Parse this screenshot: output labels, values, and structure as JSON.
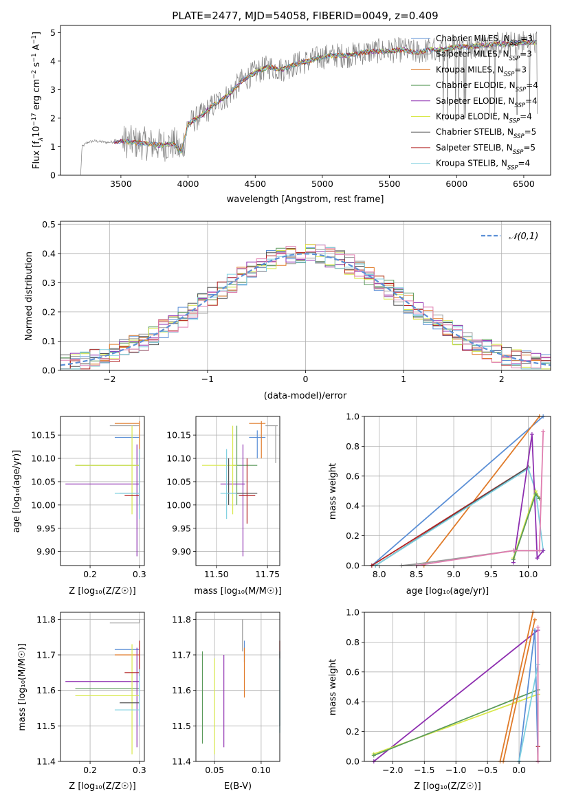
{
  "title": "PLATE=2477, MJD=54058, FIBERID=0049, z=0.409",
  "colors": {
    "Chabrier MILES": "#5b8fd6",
    "Salpeter MILES": "#9b9b9b",
    "Kroupa MILES": "#e07b2a",
    "Chabrier ELODIE": "#5a9a5a",
    "Salpeter ELODIE": "#8e2fb0",
    "Kroupa ELODIE": "#d8e84a",
    "Chabrier STELIB": "#555555",
    "Salpeter STELIB": "#b22222",
    "Kroupa STELIB": "#7fd0e0",
    "data": "#7f7f7f",
    "normal": "#5b8fd6",
    "pink": "#e07fb0"
  },
  "chart_data": [
    {
      "type": "line",
      "id": "spectrum",
      "xlabel": "wavelength [Angstrom, rest frame]",
      "ylabel": "Flux [f_λ 10^-17 erg cm^-2 s^-1 A^-1]",
      "xlim": [
        3050,
        6700
      ],
      "ylim": [
        0,
        5.25
      ],
      "xticks": [
        3500,
        4000,
        4500,
        5000,
        5500,
        6000,
        6500
      ],
      "yticks": [
        0,
        1,
        2,
        3,
        4,
        5
      ],
      "legend_position": "right",
      "legend": [
        {
          "label": "Chabrier MILES, N",
          "sub": "SSP",
          "tail": "=3"
        },
        {
          "label": "Salpeter MILES, N",
          "sub": "SSP",
          "tail": "=3"
        },
        {
          "label": "Kroupa MILES, N",
          "sub": "SSP",
          "tail": "=3"
        },
        {
          "label": "Chabrier ELODIE, N",
          "sub": "SSP",
          "tail": "=4"
        },
        {
          "label": "Salpeter ELODIE, N",
          "sub": "SSP",
          "tail": "=4"
        },
        {
          "label": "Kroupa ELODIE, N",
          "sub": "SSP",
          "tail": "=4"
        },
        {
          "label": "Chabrier STELIB, N",
          "sub": "SSP",
          "tail": "=5"
        },
        {
          "label": "Salpeter STELIB, N",
          "sub": "SSP",
          "tail": "=5"
        },
        {
          "label": "Kroupa STELIB, N",
          "sub": "SSP",
          "tail": "=4"
        }
      ],
      "continuum": [
        [
          3200,
          0
        ],
        [
          3210,
          1.0
        ],
        [
          3250,
          1.15
        ],
        [
          3300,
          1.2
        ],
        [
          3400,
          1.15
        ],
        [
          3500,
          1.2
        ],
        [
          3600,
          1.15
        ],
        [
          3700,
          1.1
        ],
        [
          3800,
          1.05
        ],
        [
          3900,
          1.1
        ],
        [
          3950,
          0.8
        ],
        [
          4000,
          1.8
        ],
        [
          4100,
          2.1
        ],
        [
          4200,
          2.5
        ],
        [
          4300,
          2.8
        ],
        [
          4400,
          3.3
        ],
        [
          4500,
          3.6
        ],
        [
          4600,
          3.8
        ],
        [
          4700,
          3.7
        ],
        [
          4800,
          3.9
        ],
        [
          4900,
          4.0
        ],
        [
          5000,
          4.15
        ],
        [
          5100,
          4.2
        ],
        [
          5200,
          4.2
        ],
        [
          5300,
          4.3
        ],
        [
          5400,
          4.35
        ],
        [
          5500,
          4.35
        ],
        [
          5600,
          4.4
        ],
        [
          5700,
          4.3
        ],
        [
          5800,
          4.4
        ],
        [
          5900,
          4.4
        ],
        [
          6000,
          4.5
        ],
        [
          6100,
          4.5
        ],
        [
          6200,
          4.55
        ],
        [
          6300,
          4.6
        ],
        [
          6400,
          4.6
        ],
        [
          6500,
          4.65
        ],
        [
          6600,
          4.65
        ]
      ]
    },
    {
      "type": "bar",
      "id": "residuals",
      "xlabel": "(data-model)/error",
      "ylabel": "Normed distribution",
      "xlim": [
        -2.5,
        2.5
      ],
      "ylim": [
        0,
        0.51
      ],
      "xticks": [
        -2,
        -1,
        0,
        1,
        2
      ],
      "yticks": [
        0.0,
        0.1,
        0.2,
        0.3,
        0.4,
        0.5
      ],
      "legend": [
        "𝒩(0,1)"
      ],
      "legend_position": "top-right",
      "normal": {
        "mean": 0,
        "sigma": 1
      }
    },
    {
      "type": "scatter",
      "id": "age_vs_Z",
      "xlabel": "Z [log₁₀(Z/Z☉)]",
      "ylabel": "age  [log₁₀(age/yr)]",
      "xlim": [
        0.14,
        0.31
      ],
      "ylim": [
        9.87,
        10.19
      ],
      "xticks": [
        0.2,
        0.3
      ],
      "yticks": [
        9.9,
        9.95,
        10.0,
        10.05,
        10.1,
        10.15
      ],
      "points": [
        {
          "series": "Chabrier MILES",
          "x": 0.3,
          "xe": [
            0.25,
            0.3
          ],
          "y": 10.145,
          "ye": [
            10.145,
            10.145
          ]
        },
        {
          "series": "Salpeter MILES",
          "x": 0.3,
          "xe": [
            0.24,
            0.3
          ],
          "y": 10.17,
          "ye": [
            10.17,
            10.17
          ]
        },
        {
          "series": "Kroupa MILES",
          "x": 0.3,
          "xe": [
            0.25,
            0.3
          ],
          "y": 10.175,
          "ye": [
            10.1,
            10.18
          ]
        },
        {
          "series": "Chabrier ELODIE",
          "x": 0.3,
          "xe": [
            0.17,
            0.3
          ],
          "y": 10.085,
          "ye": [
            10.085,
            10.085
          ]
        },
        {
          "series": "Salpeter ELODIE",
          "x": 0.295,
          "xe": [
            0.15,
            0.3
          ],
          "y": 10.045,
          "ye": [
            9.89,
            10.13
          ]
        },
        {
          "series": "Kroupa ELODIE",
          "x": 0.285,
          "xe": [
            0.17,
            0.3
          ],
          "y": 10.085,
          "ye": [
            9.98,
            10.17
          ]
        },
        {
          "series": "Chabrier STELIB",
          "x": 0.3,
          "xe": [
            0.26,
            0.3
          ],
          "y": 10.025,
          "ye": [
            10.025,
            10.025
          ]
        },
        {
          "series": "Salpeter STELIB",
          "x": 0.3,
          "xe": [
            0.27,
            0.3
          ],
          "y": 10.02,
          "ye": [
            10.0,
            10.1
          ]
        },
        {
          "series": "Kroupa STELIB",
          "x": 0.3,
          "xe": [
            0.25,
            0.3
          ],
          "y": 10.025,
          "ye": [
            9.97,
            10.12
          ]
        }
      ]
    },
    {
      "type": "scatter",
      "id": "age_vs_mass",
      "xlabel": "mass [log₁₀(M/M☉)]",
      "ylabel": "",
      "xlim": [
        11.4,
        11.81
      ],
      "ylim": [
        9.87,
        10.19
      ],
      "xticks": [
        11.5,
        11.75
      ],
      "yticks": [
        9.9,
        9.95,
        10.0,
        10.05,
        10.1,
        10.15
      ],
      "points": [
        {
          "series": "Chabrier MILES",
          "x": 11.7,
          "xe": [
            11.66,
            11.74
          ],
          "y": 10.145,
          "ye": [
            10.1,
            10.16
          ]
        },
        {
          "series": "Salpeter MILES",
          "x": 11.79,
          "xe": [
            11.74,
            11.8
          ],
          "y": 10.17,
          "ye": [
            10.09,
            10.17
          ]
        },
        {
          "series": "Kroupa MILES",
          "x": 11.72,
          "xe": [
            11.66,
            11.74
          ],
          "y": 10.175,
          "ye": [
            10.1,
            10.18
          ]
        },
        {
          "series": "Chabrier ELODIE",
          "x": 11.6,
          "xe": [
            11.58,
            11.7
          ],
          "y": 10.085,
          "ye": [
            10.0,
            10.17
          ]
        },
        {
          "series": "Salpeter ELODIE",
          "x": 11.63,
          "xe": [
            11.52,
            11.64
          ],
          "y": 10.045,
          "ye": [
            9.89,
            10.13
          ]
        },
        {
          "series": "Kroupa ELODIE",
          "x": 11.58,
          "xe": [
            11.43,
            11.6
          ],
          "y": 10.085,
          "ye": [
            9.98,
            10.17
          ]
        },
        {
          "series": "Chabrier STELIB",
          "x": 11.56,
          "xe": [
            11.55,
            11.7
          ],
          "y": 10.025,
          "ye": [
            10.0,
            10.1
          ]
        },
        {
          "series": "Salpeter STELIB",
          "x": 11.65,
          "xe": [
            11.61,
            11.69
          ],
          "y": 10.02,
          "ye": [
            9.96,
            10.1
          ]
        },
        {
          "series": "Kroupa STELIB",
          "x": 11.55,
          "xe": [
            11.52,
            11.6
          ],
          "y": 10.025,
          "ye": [
            9.97,
            10.12
          ]
        }
      ]
    },
    {
      "type": "line",
      "id": "massweight_vs_age",
      "xlabel": "age  [log₁₀(age/yr)]",
      "ylabel": "mass weight",
      "xlim": [
        7.8,
        10.3
      ],
      "ylim": [
        0,
        1
      ],
      "xticks": [
        8.0,
        8.5,
        9.0,
        9.5,
        10.0
      ],
      "yticks": [
        0.0,
        0.2,
        0.4,
        0.6,
        0.8,
        1.0
      ],
      "series": [
        {
          "name": "Chabrier MILES",
          "x": [
            7.9,
            10.2
          ],
          "y": [
            0.0,
            1.0
          ]
        },
        {
          "name": "Kroupa MILES",
          "x": [
            8.6,
            10.15
          ],
          "y": [
            0.0,
            1.0
          ]
        },
        {
          "name": "Salpeter MILES",
          "x": [
            8.3,
            8.5,
            9.8,
            10.2
          ],
          "y": [
            0.0,
            0.01,
            0.1,
            0.1
          ]
        },
        {
          "name": "Salpeter STELIB",
          "x": [
            7.9,
            10.0
          ],
          "y": [
            0.0,
            0.66
          ]
        },
        {
          "name": "Chabrier STELIB",
          "x": [
            7.95,
            10.0
          ],
          "y": [
            0.0,
            0.66
          ]
        },
        {
          "name": "Kroupa STELIB",
          "x": [
            7.95,
            10.0,
            10.1,
            10.2
          ],
          "y": [
            0.0,
            0.65,
            0.5,
            0.1
          ]
        },
        {
          "name": "Salpeter ELODIE",
          "x": [
            9.8,
            10.05,
            10.12,
            10.2
          ],
          "y": [
            0.02,
            0.88,
            0.05,
            0.1
          ]
        },
        {
          "name": "Kroupa ELODIE",
          "x": [
            9.8,
            10.1,
            10.15
          ],
          "y": [
            0.05,
            0.5,
            0.45
          ]
        },
        {
          "name": "Chabrier ELODIE",
          "x": [
            9.8,
            10.1,
            10.15
          ],
          "y": [
            0.04,
            0.48,
            0.45
          ]
        },
        {
          "name": "pink",
          "x": [
            8.5,
            9.8,
            10.15,
            10.2
          ],
          "y": [
            0.0,
            0.1,
            0.1,
            0.9
          ]
        }
      ]
    },
    {
      "type": "scatter",
      "id": "mass_vs_Z",
      "xlabel": "Z [log₁₀(Z/Z☉)]",
      "ylabel": "mass [log₁₀(M/M☉)]",
      "xlim": [
        0.14,
        0.31
      ],
      "ylim": [
        11.4,
        11.82
      ],
      "xticks": [
        0.2,
        0.3
      ],
      "yticks": [
        11.4,
        11.5,
        11.6,
        11.7,
        11.8
      ],
      "points": [
        {
          "series": "Chabrier MILES",
          "x": 0.3,
          "xe": [
            0.25,
            0.3
          ],
          "y": 11.715,
          "ye": [
            11.715,
            11.715
          ]
        },
        {
          "series": "Salpeter MILES",
          "x": 0.3,
          "xe": [
            0.24,
            0.3
          ],
          "y": 11.79,
          "ye": [
            11.79,
            11.8
          ]
        },
        {
          "series": "Kroupa MILES",
          "x": 0.3,
          "xe": [
            0.25,
            0.3
          ],
          "y": 11.7,
          "ye": [
            11.7,
            11.7
          ]
        },
        {
          "series": "Chabrier ELODIE",
          "x": 0.3,
          "xe": [
            0.17,
            0.3
          ],
          "y": 11.605,
          "ye": [
            11.605,
            11.605
          ]
        },
        {
          "series": "Salpeter ELODIE",
          "x": 0.295,
          "xe": [
            0.15,
            0.3
          ],
          "y": 11.625,
          "ye": [
            11.44,
            11.72
          ]
        },
        {
          "series": "Kroupa ELODIE",
          "x": 0.285,
          "xe": [
            0.17,
            0.3
          ],
          "y": 11.585,
          "ye": [
            11.42,
            11.73
          ]
        },
        {
          "series": "Chabrier STELIB",
          "x": 0.3,
          "xe": [
            0.26,
            0.3
          ],
          "y": 11.565,
          "ye": [
            11.565,
            11.565
          ]
        },
        {
          "series": "Salpeter STELIB",
          "x": 0.3,
          "xe": [
            0.27,
            0.3
          ],
          "y": 11.65,
          "ye": [
            11.64,
            11.74
          ]
        },
        {
          "series": "Kroupa STELIB",
          "x": 0.3,
          "xe": [
            0.25,
            0.3
          ],
          "y": 11.545,
          "ye": [
            11.5,
            11.66
          ]
        }
      ]
    },
    {
      "type": "scatter",
      "id": "mass_vs_EBV",
      "xlabel": "E(B-V)",
      "ylabel": "",
      "xlim": [
        0.03,
        0.12
      ],
      "ylim": [
        11.4,
        11.82
      ],
      "xticks": [
        0.05,
        0.1
      ],
      "yticks": [
        11.4,
        11.5,
        11.6,
        11.7,
        11.8
      ],
      "points": [
        {
          "series": "Chabrier MILES",
          "x": 0.082,
          "ye": [
            11.68,
            11.74
          ]
        },
        {
          "series": "Salpeter MILES",
          "x": 0.08,
          "ye": [
            11.71,
            11.8
          ]
        },
        {
          "series": "Kroupa MILES",
          "x": 0.082,
          "ye": [
            11.58,
            11.72
          ]
        },
        {
          "series": "Chabrier ELODIE",
          "x": 0.037,
          "ye": [
            11.45,
            11.71
          ]
        },
        {
          "series": "Salpeter ELODIE",
          "x": 0.06,
          "ye": [
            11.44,
            11.7
          ]
        },
        {
          "series": "Kroupa ELODIE",
          "x": 0.05,
          "ye": [
            11.42,
            11.69
          ]
        },
        {
          "series": "Chabrier STELIB",
          "x": 0.12,
          "ye": [
            11.5,
            11.71
          ]
        },
        {
          "series": "Salpeter STELIB",
          "x": 0.12,
          "ye": [
            11.69,
            11.74
          ]
        },
        {
          "series": "Kroupa STELIB",
          "x": 0.12,
          "ye": [
            11.48,
            11.71
          ]
        }
      ]
    },
    {
      "type": "line",
      "id": "massweight_vs_Z",
      "xlabel": "Z [log₁₀(Z/Z☉)]",
      "ylabel": "mass weight",
      "xlim": [
        -2.45,
        0.5
      ],
      "ylim": [
        0,
        1
      ],
      "xticks": [
        -2.0,
        -1.5,
        -1.0,
        -0.5,
        0.0
      ],
      "yticks": [
        0.0,
        0.2,
        0.4,
        0.6,
        0.8,
        1.0
      ],
      "series": [
        {
          "name": "Salpeter ELODIE",
          "x": [
            -2.3,
            0.3
          ],
          "y": [
            0.0,
            0.88
          ]
        },
        {
          "name": "Kroupa ELODIE",
          "x": [
            -2.3,
            0.3
          ],
          "y": [
            0.05,
            0.45
          ]
        },
        {
          "name": "Chabrier ELODIE",
          "x": [
            -2.3,
            0.3
          ],
          "y": [
            0.04,
            0.48
          ]
        },
        {
          "name": "Kroupa MILES",
          "x": [
            -0.3,
            0.22
          ],
          "y": [
            0.0,
            1.0
          ]
        },
        {
          "name": "Kroupa MILES",
          "x": [
            -0.25,
            0.25
          ],
          "y": [
            0.0,
            0.95
          ]
        },
        {
          "name": "Chabrier MILES",
          "x": [
            0.0,
            0.25,
            0.3
          ],
          "y": [
            0.0,
            0.88,
            0.0
          ]
        },
        {
          "name": "Kroupa STELIB",
          "x": [
            0.0,
            0.3,
            0.3
          ],
          "y": [
            0.0,
            0.65,
            0.1
          ]
        },
        {
          "name": "Salpeter STELIB",
          "x": [
            0.3,
            0.3
          ],
          "y": [
            0.1,
            0.0
          ]
        },
        {
          "name": "pink",
          "x": [
            0.3,
            0.3
          ],
          "y": [
            0.9,
            0.0
          ]
        }
      ]
    }
  ]
}
